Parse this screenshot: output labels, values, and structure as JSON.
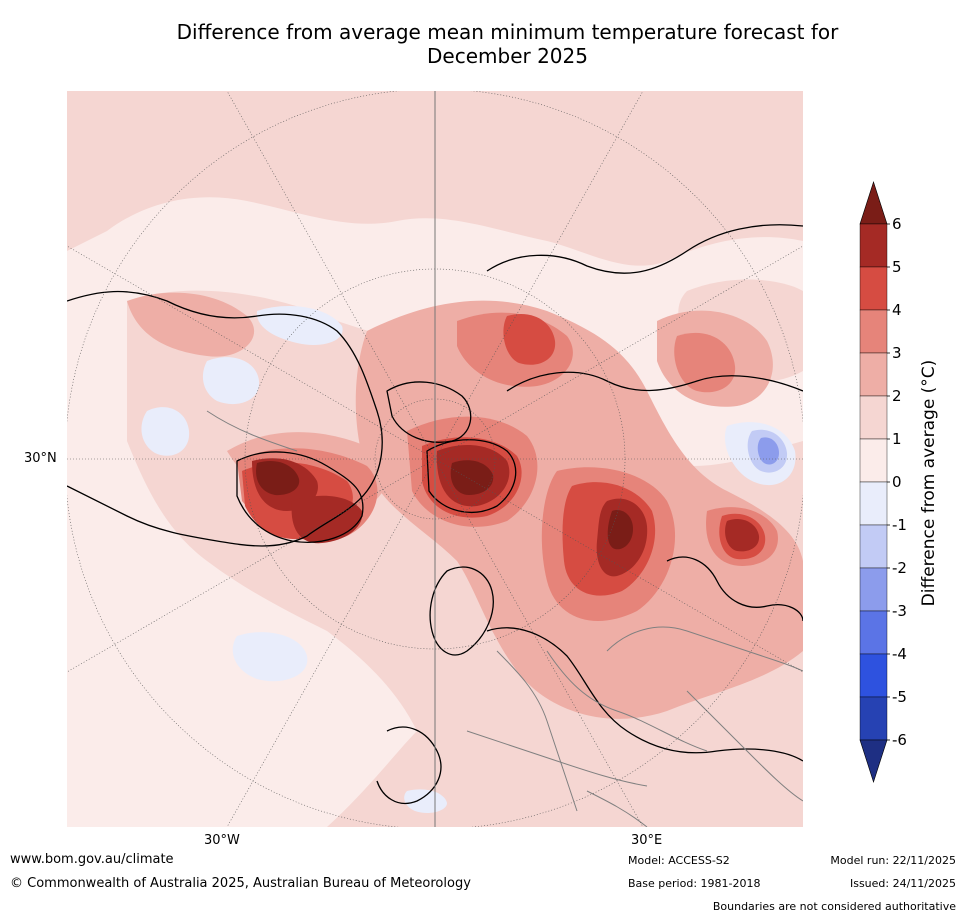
{
  "title": {
    "line1": "Difference from average mean minimum temperature forecast for",
    "line2": "December 2025"
  },
  "map": {
    "lat_label": "30°N",
    "lon_labels": [
      "30°W",
      "30°E"
    ]
  },
  "colorbar": {
    "label": "Difference from average (°C)",
    "ticks": [
      "6",
      "5",
      "4",
      "3",
      "2",
      "1",
      "0",
      "-1",
      "-2",
      "-3",
      "-4",
      "-5",
      "-6"
    ],
    "colors": {
      "above6": "#7a1d17",
      "5to6": "#a52a25",
      "4to5": "#d64c42",
      "3to4": "#e6847a",
      "2to3": "#eeaea6",
      "1to2": "#f5d6d2",
      "0to1": "#fbecea",
      "m1to0": "#e9edfb",
      "m2tom1": "#c2cbf5",
      "m3tom2": "#8c9cec",
      "m4tom3": "#5b74e6",
      "m5tom4": "#2e52df",
      "m6tom5": "#2642b3",
      "below_m6": "#1e2f83"
    }
  },
  "footer": {
    "website": "www.bom.gov.au/climate",
    "copyright": "© Commonwealth of Australia 2025, Australian Bureau of Meteorology",
    "model": "Model: ACCESS-S2",
    "base_period": "Base period: 1981-2018",
    "model_run": "Model run: 22/11/2025",
    "issued": "Issued: 24/11/2025",
    "disclaimer": "Boundaries are not considered authoritative"
  }
}
